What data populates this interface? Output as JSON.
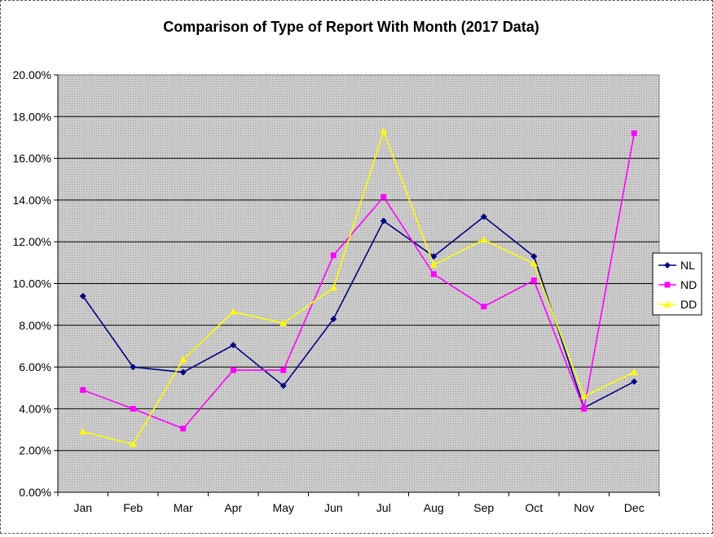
{
  "chart_data": {
    "type": "line",
    "title": "Comparison of Type of Report With Month (2017 Data)",
    "xlabel": "",
    "ylabel": "",
    "categories": [
      "Jan",
      "Feb",
      "Mar",
      "Apr",
      "May",
      "Jun",
      "Jul",
      "Aug",
      "Sep",
      "Oct",
      "Nov",
      "Dec"
    ],
    "ylim": [
      0,
      20
    ],
    "y_ticks": [
      "0.00%",
      "2.00%",
      "4.00%",
      "6.00%",
      "8.00%",
      "10.00%",
      "12.00%",
      "14.00%",
      "16.00%",
      "18.00%",
      "20.00%"
    ],
    "grid": true,
    "legend_position": "right",
    "series": [
      {
        "name": "NL",
        "color": "#000080",
        "marker": "diamond",
        "values": [
          9.4,
          6.0,
          5.75,
          7.05,
          5.1,
          8.3,
          13.0,
          11.3,
          13.2,
          11.3,
          4.05,
          5.3
        ]
      },
      {
        "name": "ND",
        "color": "#ff00ff",
        "marker": "square",
        "values": [
          4.9,
          4.0,
          3.05,
          5.85,
          5.85,
          11.35,
          14.15,
          10.45,
          8.9,
          10.15,
          4.0,
          17.2
        ]
      },
      {
        "name": "DD",
        "color": "#ffff00",
        "marker": "triangle",
        "values": [
          2.9,
          2.3,
          6.35,
          8.65,
          8.1,
          9.8,
          17.3,
          10.9,
          12.1,
          10.95,
          4.6,
          5.75
        ]
      }
    ]
  }
}
